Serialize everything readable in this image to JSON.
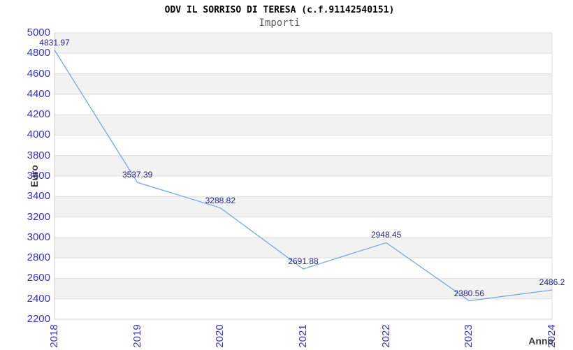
{
  "header": {
    "title": "ODV IL SORRISO DI TERESA (c.f.91142540151)",
    "subtitle": "Importi"
  },
  "chart_data": {
    "type": "line",
    "title": "ODV IL SORRISO DI TERESA (c.f.91142540151)",
    "subtitle": "Importi",
    "xlabel": "Anno",
    "ylabel": "Euro",
    "categories": [
      "2018",
      "2019",
      "2020",
      "2021",
      "2022",
      "2023",
      "2024"
    ],
    "values": [
      4831.97,
      3537.39,
      3288.82,
      2691.88,
      2948.45,
      2380.56,
      2486.2
    ],
    "point_labels": [
      "4831.97",
      "3537.39",
      "3288.82",
      "2691.88",
      "2948.45",
      "2380.56",
      "2486.2"
    ],
    "ylim": [
      2200,
      5000
    ],
    "ytick_step": 200,
    "ytick_labels": [
      "2200",
      "2400",
      "2600",
      "2800",
      "3000",
      "3200",
      "3400",
      "3600",
      "3800",
      "4000",
      "4200",
      "4400",
      "4600",
      "4800",
      "5000"
    ],
    "grid": "horizontal, alternating shaded bands",
    "legend": "none",
    "markers": "none",
    "colors": {
      "line": "#7aa8da",
      "tick_label": "#3232cd",
      "data_label": "#22228e",
      "band": "#f2f2f2",
      "band_alt": "#ffffff",
      "grid": "#dddddd",
      "axis": "#cccccc",
      "title": "#000000",
      "subtitle": "#606060",
      "axis_title": "#3c3c3c",
      "background": "#ffffff"
    }
  }
}
